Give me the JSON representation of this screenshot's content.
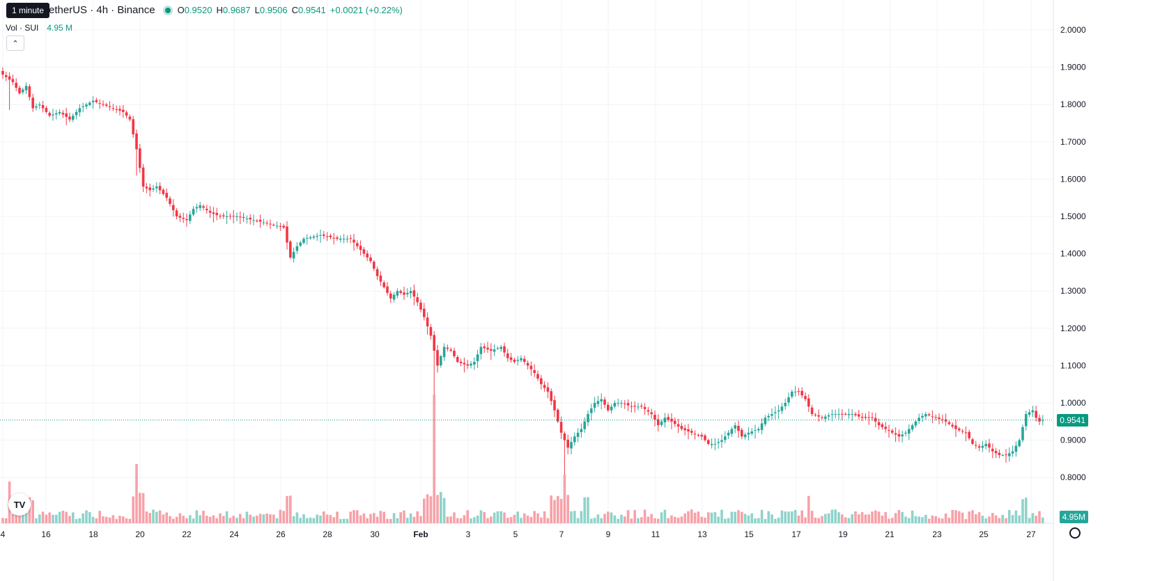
{
  "tooltip": "1 minute",
  "legend": {
    "title": "etherUS · 4h · Binance",
    "open_key": "O",
    "open": "0.9520",
    "high_key": "H",
    "high": "0.9687",
    "low_key": "L",
    "low": "0.9506",
    "close_key": "C",
    "close": "0.9541",
    "change": "+0.0021 (+0.22%)"
  },
  "volume": {
    "label": "Vol · SUI",
    "value": "4.95 M"
  },
  "price_tag": "0.9541",
  "volume_tag": "4.95M",
  "logo": "TV",
  "colors": {
    "up": "#26a69a",
    "down": "#f23645",
    "up_vol": "#8fd3ca",
    "down_vol": "#f7a1a8",
    "last": "#089981"
  },
  "chart_data": {
    "type": "candlestick",
    "y_axis": {
      "min": 0.75,
      "max": 2.05,
      "ticks": [
        "2.0000",
        "1.9000",
        "1.8000",
        "1.7000",
        "1.6000",
        "1.5000",
        "1.4000",
        "1.3000",
        "1.2000",
        "1.1000",
        "1.0000",
        "0.9000",
        "0.8000"
      ]
    },
    "x_axis": {
      "ticks": [
        "4",
        "16",
        "18",
        "20",
        "22",
        "24",
        "26",
        "28",
        "30",
        "Feb",
        "3",
        "5",
        "7",
        "9",
        "11",
        "13",
        "15",
        "17",
        "19",
        "21",
        "23",
        "25",
        "27"
      ]
    },
    "last_price": 0.9541,
    "anchors": [
      [
        0,
        1.88
      ],
      [
        3,
        1.86
      ],
      [
        5,
        1.83
      ],
      [
        7,
        1.85
      ],
      [
        9,
        1.79
      ],
      [
        11,
        1.8
      ],
      [
        14,
        1.77
      ],
      [
        17,
        1.78
      ],
      [
        20,
        1.76
      ],
      [
        23,
        1.79
      ],
      [
        27,
        1.81
      ],
      [
        30,
        1.8
      ],
      [
        33,
        1.79
      ],
      [
        36,
        1.78
      ],
      [
        38,
        1.76
      ],
      [
        40,
        1.68
      ],
      [
        42,
        1.58
      ],
      [
        44,
        1.57
      ],
      [
        46,
        1.58
      ],
      [
        49,
        1.55
      ],
      [
        52,
        1.5
      ],
      [
        55,
        1.49
      ],
      [
        57,
        1.52
      ],
      [
        59,
        1.53
      ],
      [
        62,
        1.51
      ],
      [
        65,
        1.5
      ],
      [
        70,
        1.5
      ],
      [
        75,
        1.49
      ],
      [
        80,
        1.48
      ],
      [
        84,
        1.47
      ],
      [
        86,
        1.39
      ],
      [
        88,
        1.42
      ],
      [
        90,
        1.44
      ],
      [
        95,
        1.45
      ],
      [
        100,
        1.44
      ],
      [
        104,
        1.44
      ],
      [
        106,
        1.42
      ],
      [
        108,
        1.4
      ],
      [
        110,
        1.38
      ],
      [
        112,
        1.34
      ],
      [
        114,
        1.31
      ],
      [
        116,
        1.28
      ],
      [
        118,
        1.3
      ],
      [
        120,
        1.29
      ],
      [
        122,
        1.3
      ],
      [
        124,
        1.27
      ],
      [
        126,
        1.23
      ],
      [
        128,
        1.18
      ],
      [
        130,
        1.1
      ],
      [
        132,
        1.15
      ],
      [
        134,
        1.14
      ],
      [
        136,
        1.11
      ],
      [
        139,
        1.1
      ],
      [
        141,
        1.11
      ],
      [
        143,
        1.15
      ],
      [
        146,
        1.14
      ],
      [
        149,
        1.15
      ],
      [
        151,
        1.12
      ],
      [
        153,
        1.11
      ],
      [
        155,
        1.12
      ],
      [
        157,
        1.1
      ],
      [
        159,
        1.08
      ],
      [
        161,
        1.05
      ],
      [
        163,
        1.03
      ],
      [
        165,
        0.98
      ],
      [
        167,
        0.92
      ],
      [
        169,
        0.88
      ],
      [
        171,
        0.91
      ],
      [
        173,
        0.93
      ],
      [
        175,
        0.97
      ],
      [
        177,
        1.0
      ],
      [
        179,
        1.01
      ],
      [
        181,
        0.98
      ],
      [
        183,
        1.0
      ],
      [
        185,
        1.0
      ],
      [
        188,
        0.99
      ],
      [
        191,
        0.99
      ],
      [
        194,
        0.97
      ],
      [
        196,
        0.94
      ],
      [
        198,
        0.96
      ],
      [
        200,
        0.95
      ],
      [
        203,
        0.93
      ],
      [
        206,
        0.92
      ],
      [
        209,
        0.91
      ],
      [
        211,
        0.89
      ],
      [
        213,
        0.89
      ],
      [
        215,
        0.9
      ],
      [
        217,
        0.92
      ],
      [
        219,
        0.94
      ],
      [
        221,
        0.91
      ],
      [
        223,
        0.92
      ],
      [
        226,
        0.93
      ],
      [
        228,
        0.96
      ],
      [
        230,
        0.97
      ],
      [
        232,
        0.98
      ],
      [
        234,
        1.0
      ],
      [
        236,
        1.03
      ],
      [
        238,
        1.03
      ],
      [
        240,
        1.01
      ],
      [
        242,
        0.97
      ],
      [
        245,
        0.96
      ],
      [
        248,
        0.97
      ],
      [
        251,
        0.97
      ],
      [
        254,
        0.97
      ],
      [
        257,
        0.96
      ],
      [
        260,
        0.96
      ],
      [
        262,
        0.94
      ],
      [
        264,
        0.93
      ],
      [
        266,
        0.92
      ],
      [
        268,
        0.91
      ],
      [
        270,
        0.92
      ],
      [
        272,
        0.94
      ],
      [
        274,
        0.96
      ],
      [
        276,
        0.97
      ],
      [
        279,
        0.96
      ],
      [
        282,
        0.95
      ],
      [
        285,
        0.93
      ],
      [
        288,
        0.92
      ],
      [
        290,
        0.89
      ],
      [
        292,
        0.88
      ],
      [
        294,
        0.89
      ],
      [
        296,
        0.87
      ],
      [
        298,
        0.86
      ],
      [
        300,
        0.86
      ],
      [
        302,
        0.87
      ],
      [
        304,
        0.9
      ],
      [
        306,
        0.97
      ],
      [
        308,
        0.98
      ],
      [
        309,
        0.96
      ],
      [
        310,
        0.95
      ],
      [
        311,
        0.954
      ]
    ]
  }
}
